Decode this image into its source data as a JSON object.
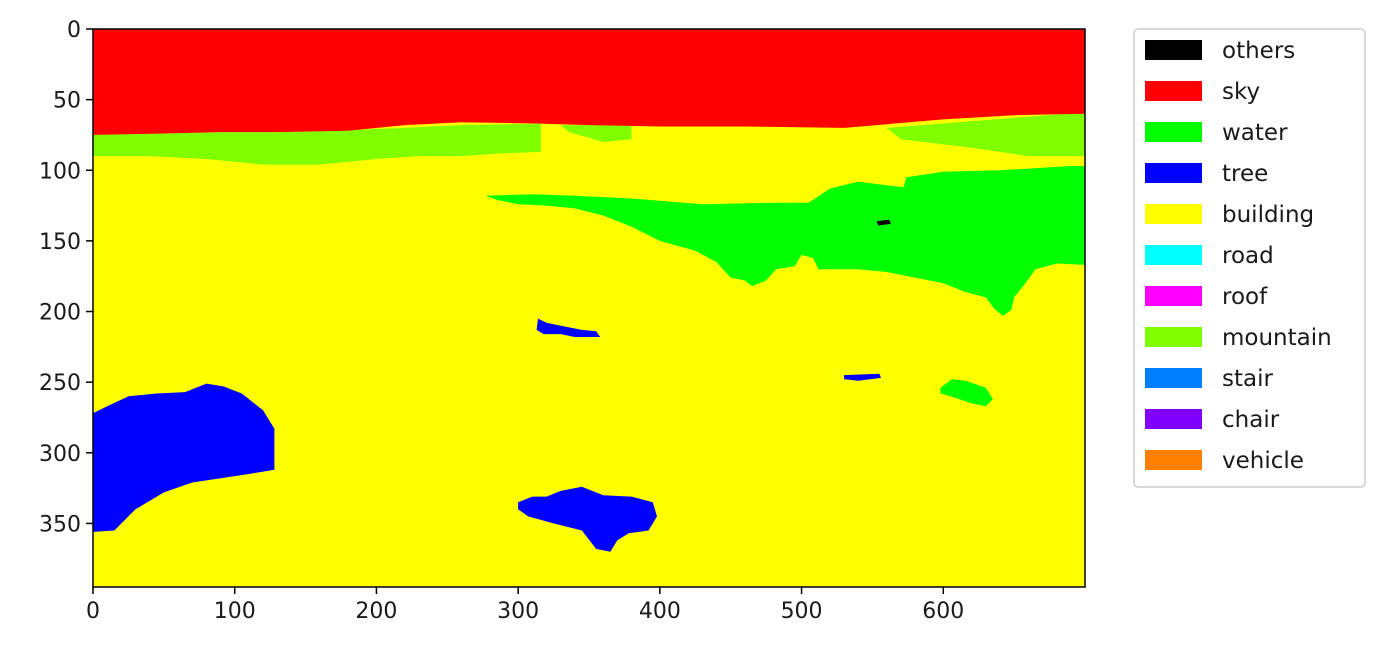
{
  "chart_data": {
    "type": "heatmap",
    "title": "",
    "xlabel": "",
    "ylabel": "",
    "xlim": [
      0,
      700
    ],
    "ylim": [
      395,
      0
    ],
    "x_ticks": [
      0,
      100,
      200,
      300,
      400,
      500,
      600
    ],
    "y_ticks": [
      0,
      50,
      100,
      150,
      200,
      250,
      300,
      350
    ],
    "x_tick_labels": [
      "0",
      "100",
      "200",
      "300",
      "400",
      "500",
      "600"
    ],
    "y_tick_labels": [
      "0",
      "50",
      "100",
      "150",
      "200",
      "250",
      "300",
      "350"
    ],
    "grid": false,
    "legend_position": "outside-right",
    "classes": [
      {
        "label": "others",
        "color": "#000000"
      },
      {
        "label": "sky",
        "color": "#ff0000"
      },
      {
        "label": "water",
        "color": "#00ff00"
      },
      {
        "label": "tree",
        "color": "#0000ff"
      },
      {
        "label": "building",
        "color": "#ffff00"
      },
      {
        "label": "road",
        "color": "#00ffff"
      },
      {
        "label": "roof",
        "color": "#ff00ff"
      },
      {
        "label": "mountain",
        "color": "#80ff00"
      },
      {
        "label": "stair",
        "color": "#0080ff"
      },
      {
        "label": "chair",
        "color": "#8000ff"
      },
      {
        "label": "vehicle",
        "color": "#ff8000"
      }
    ],
    "background_class": "building",
    "regions": [
      {
        "class": "mountain",
        "points": [
          [
            0,
            75
          ],
          [
            40,
            74
          ],
          [
            90,
            73
          ],
          [
            130,
            73
          ],
          [
            170,
            72
          ],
          [
            220,
            70
          ],
          [
            260,
            68
          ],
          [
            316,
            67
          ],
          [
            316,
            87
          ],
          [
            290,
            88
          ],
          [
            260,
            90
          ],
          [
            230,
            90
          ],
          [
            200,
            92
          ],
          [
            160,
            96
          ],
          [
            120,
            96
          ],
          [
            80,
            92
          ],
          [
            40,
            90
          ],
          [
            0,
            90
          ]
        ]
      },
      {
        "class": "mountain",
        "points": [
          [
            330,
            68
          ],
          [
            380,
            68
          ],
          [
            380,
            78
          ],
          [
            360,
            80
          ],
          [
            350,
            77
          ],
          [
            336,
            73
          ]
        ]
      },
      {
        "class": "mountain",
        "points": [
          [
            560,
            70
          ],
          [
            700,
            59
          ],
          [
            700,
            90
          ],
          [
            660,
            90
          ],
          [
            620,
            84
          ],
          [
            570,
            78
          ]
        ]
      },
      {
        "class": "sky",
        "points": [
          [
            0,
            0
          ],
          [
            700,
            0
          ],
          [
            700,
            60
          ],
          [
            650,
            61
          ],
          [
            600,
            64
          ],
          [
            530,
            70
          ],
          [
            460,
            69
          ],
          [
            400,
            69
          ],
          [
            350,
            68
          ],
          [
            316,
            67
          ],
          [
            260,
            66
          ],
          [
            220,
            68
          ],
          [
            180,
            72
          ],
          [
            130,
            73
          ],
          [
            90,
            73
          ],
          [
            50,
            74
          ],
          [
            0,
            75
          ]
        ]
      },
      {
        "class": "water",
        "points": [
          [
            277,
            118
          ],
          [
            310,
            117
          ],
          [
            340,
            118
          ],
          [
            380,
            120
          ],
          [
            430,
            124
          ],
          [
            480,
            123
          ],
          [
            505,
            123
          ],
          [
            520,
            113
          ],
          [
            540,
            108
          ],
          [
            555,
            110
          ],
          [
            572,
            112
          ],
          [
            574,
            105
          ],
          [
            600,
            101
          ],
          [
            640,
            100
          ],
          [
            690,
            97
          ],
          [
            700,
            97
          ],
          [
            700,
            167
          ],
          [
            680,
            166
          ],
          [
            665,
            170
          ],
          [
            658,
            180
          ],
          [
            650,
            190
          ],
          [
            648,
            199
          ],
          [
            642,
            203
          ],
          [
            636,
            198
          ],
          [
            630,
            190
          ],
          [
            615,
            186
          ],
          [
            600,
            180
          ],
          [
            585,
            177
          ],
          [
            560,
            172
          ],
          [
            540,
            170
          ],
          [
            512,
            170
          ],
          [
            508,
            162
          ],
          [
            500,
            160
          ],
          [
            495,
            168
          ],
          [
            482,
            170
          ],
          [
            475,
            178
          ],
          [
            465,
            182
          ],
          [
            460,
            178
          ],
          [
            450,
            176
          ],
          [
            440,
            165
          ],
          [
            425,
            157
          ],
          [
            400,
            150
          ],
          [
            380,
            140
          ],
          [
            360,
            132
          ],
          [
            340,
            127
          ],
          [
            320,
            125
          ],
          [
            300,
            124
          ],
          [
            285,
            121
          ]
        ]
      },
      {
        "class": "water",
        "points": [
          [
            598,
            254
          ],
          [
            606,
            248
          ],
          [
            616,
            249
          ],
          [
            630,
            254
          ],
          [
            635,
            262
          ],
          [
            630,
            267
          ],
          [
            620,
            265
          ],
          [
            605,
            260
          ],
          [
            598,
            258
          ]
        ]
      },
      {
        "class": "tree",
        "points": [
          [
            0,
            272
          ],
          [
            10,
            267
          ],
          [
            25,
            260
          ],
          [
            45,
            258
          ],
          [
            65,
            257
          ],
          [
            80,
            251
          ],
          [
            92,
            253
          ],
          [
            105,
            258
          ],
          [
            120,
            270
          ],
          [
            128,
            283
          ],
          [
            128,
            312
          ],
          [
            110,
            315
          ],
          [
            90,
            318
          ],
          [
            70,
            321
          ],
          [
            50,
            328
          ],
          [
            30,
            340
          ],
          [
            15,
            355
          ],
          [
            0,
            356
          ]
        ]
      },
      {
        "class": "tree",
        "points": [
          [
            300,
            335
          ],
          [
            310,
            331
          ],
          [
            320,
            331
          ],
          [
            330,
            327
          ],
          [
            345,
            324
          ],
          [
            360,
            330
          ],
          [
            380,
            331
          ],
          [
            395,
            335
          ],
          [
            398,
            345
          ],
          [
            392,
            355
          ],
          [
            378,
            357
          ],
          [
            370,
            362
          ],
          [
            365,
            370
          ],
          [
            355,
            368
          ],
          [
            345,
            355
          ],
          [
            325,
            350
          ],
          [
            307,
            345
          ],
          [
            300,
            340
          ]
        ]
      },
      {
        "class": "tree",
        "points": [
          [
            314,
            205
          ],
          [
            320,
            208
          ],
          [
            335,
            211
          ],
          [
            345,
            213
          ],
          [
            355,
            214
          ],
          [
            358,
            218
          ],
          [
            340,
            218
          ],
          [
            330,
            216
          ],
          [
            318,
            216
          ],
          [
            313,
            213
          ]
        ]
      },
      {
        "class": "tree",
        "points": [
          [
            530,
            245
          ],
          [
            555,
            244
          ],
          [
            556,
            247
          ],
          [
            540,
            249
          ],
          [
            530,
            248
          ]
        ]
      },
      {
        "class": "others",
        "points": [
          [
            553,
            136
          ],
          [
            562,
            135
          ],
          [
            563,
            138
          ],
          [
            554,
            139
          ]
        ]
      }
    ]
  }
}
